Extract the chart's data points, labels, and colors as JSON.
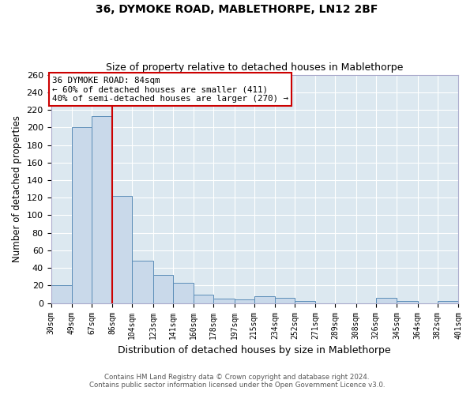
{
  "title1": "36, DYMOKE ROAD, MABLETHORPE, LN12 2BF",
  "title2": "Size of property relative to detached houses in Mablethorpe",
  "xlabel": "Distribution of detached houses by size in Mablethorpe",
  "ylabel": "Number of detached properties",
  "bar_edges": [
    30,
    49,
    67,
    86,
    104,
    123,
    141,
    160,
    178,
    197,
    215,
    234,
    252,
    271,
    289,
    308,
    326,
    345,
    364,
    382,
    401
  ],
  "bar_heights": [
    20,
    200,
    213,
    122,
    48,
    32,
    23,
    10,
    5,
    4,
    8,
    6,
    2,
    0,
    0,
    0,
    6,
    2,
    0,
    2
  ],
  "bar_color": "#c9d9ea",
  "bar_edge_color": "#5b8db8",
  "reference_line_x": 86,
  "reference_line_color": "#cc0000",
  "ylim": [
    0,
    260
  ],
  "yticks": [
    0,
    20,
    40,
    60,
    80,
    100,
    120,
    140,
    160,
    180,
    200,
    220,
    240,
    260
  ],
  "annotation_title": "36 DYMOKE ROAD: 84sqm",
  "annotation_line1": "← 60% of detached houses are smaller (411)",
  "annotation_line2": "40% of semi-detached houses are larger (270) →",
  "footer1": "Contains HM Land Registry data © Crown copyright and database right 2024.",
  "footer2": "Contains public sector information licensed under the Open Government Licence v3.0.",
  "fig_background": "#ffffff",
  "plot_background": "#dce8f0",
  "grid_color": "#ffffff",
  "tick_labels": [
    "30sqm",
    "49sqm",
    "67sqm",
    "86sqm",
    "104sqm",
    "123sqm",
    "141sqm",
    "160sqm",
    "178sqm",
    "197sqm",
    "215sqm",
    "234sqm",
    "252sqm",
    "271sqm",
    "289sqm",
    "308sqm",
    "326sqm",
    "345sqm",
    "364sqm",
    "382sqm",
    "401sqm"
  ]
}
